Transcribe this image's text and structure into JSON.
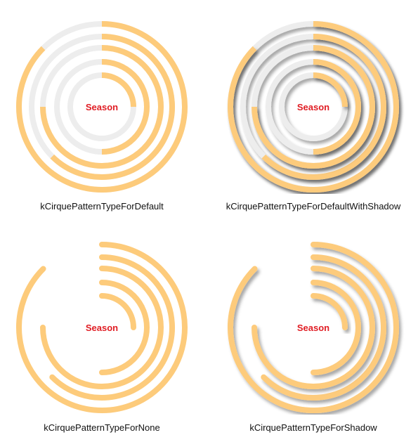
{
  "center_label": "Season",
  "colors": {
    "progress": "#fdcb7b",
    "track": "#ededed",
    "label": "#e01d24",
    "background": "#ffffff"
  },
  "panels": [
    {
      "caption": "kCirquePatternTypeForDefault",
      "show_track": true,
      "shadow": false,
      "rings": [
        {
          "progress": 0.875
        },
        {
          "progress": 0.625
        },
        {
          "progress": 0.75
        },
        {
          "progress": 0.5
        },
        {
          "progress": 0.25
        }
      ]
    },
    {
      "caption": "kCirquePatternTypeForDefaultWithShadow",
      "show_track": true,
      "shadow": true,
      "rings": [
        {
          "progress": 0.875
        },
        {
          "progress": 0.625
        },
        {
          "progress": 0.75
        },
        {
          "progress": 0.5
        },
        {
          "progress": 0.25
        }
      ]
    },
    {
      "caption": "kCirquePatternTypeForNone",
      "show_track": false,
      "shadow": false,
      "rings": [
        {
          "progress": 0.875
        },
        {
          "progress": 0.625
        },
        {
          "progress": 0.75
        },
        {
          "progress": 0.5
        },
        {
          "progress": 0.25
        }
      ]
    },
    {
      "caption": "kCirquePatternTypeForShadow",
      "show_track": false,
      "shadow": true,
      "rings": [
        {
          "progress": 0.875
        },
        {
          "progress": 0.625
        },
        {
          "progress": 0.75
        },
        {
          "progress": 0.5
        },
        {
          "progress": 0.25
        }
      ]
    }
  ]
}
